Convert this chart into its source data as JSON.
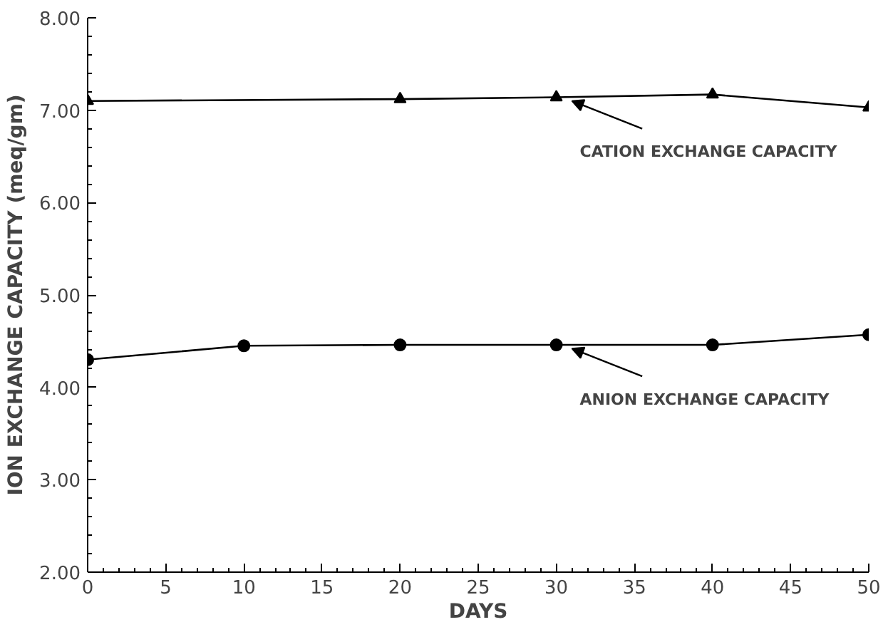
{
  "chart_data": {
    "type": "line",
    "xlabel": "DAYS",
    "ylabel": "ION EXCHANGE CAPACITY (meq/gm)",
    "series": [
      {
        "x": [
          0,
          20,
          30,
          40,
          50
        ],
        "values": [
          7.1,
          7.12,
          7.14,
          7.17,
          7.03
        ],
        "color": "#000000",
        "marker": "triangle"
      },
      {
        "x": [
          0,
          10,
          20,
          30,
          40,
          50
        ],
        "values": [
          4.3,
          4.45,
          4.46,
          4.46,
          4.46,
          4.57
        ],
        "color": "#000000",
        "marker": "circle"
      }
    ],
    "annotations": [
      {
        "text": "CATION EXCHANGE CAPACITY",
        "x": 31,
        "y": 7.1
      },
      {
        "text": "ANION EXCHANGE CAPACITY",
        "x": 31,
        "y": 4.42
      }
    ],
    "xlim": [
      0,
      50
    ],
    "xticks": [
      0,
      5,
      10,
      15,
      20,
      25,
      30,
      35,
      40,
      45,
      50
    ],
    "ylim": [
      2,
      8
    ],
    "yticks": [
      {
        "value": 2,
        "label": "2.00"
      },
      {
        "value": 3,
        "label": "3.00"
      },
      {
        "value": 4,
        "label": "4.00"
      },
      {
        "value": 5,
        "label": "5.00"
      },
      {
        "value": 6,
        "label": "6.00"
      },
      {
        "value": 7,
        "label": "7.00"
      },
      {
        "value": 8,
        "label": "8.00"
      }
    ],
    "grid": false,
    "line_style": "solid"
  }
}
